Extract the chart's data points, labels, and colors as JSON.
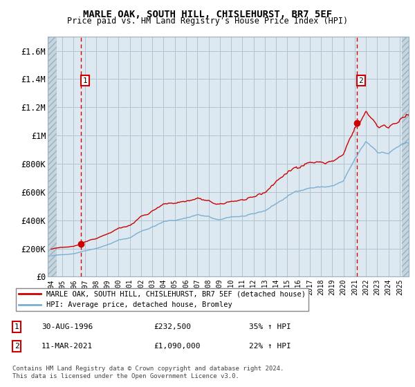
{
  "title": "MARLE OAK, SOUTH HILL, CHISLEHURST, BR7 5EF",
  "subtitle": "Price paid vs. HM Land Registry's House Price Index (HPI)",
  "ylabel_ticks": [
    "£0",
    "£200K",
    "£400K",
    "£600K",
    "£800K",
    "£1M",
    "£1.2M",
    "£1.4M",
    "£1.6M"
  ],
  "ytick_values": [
    0,
    200000,
    400000,
    600000,
    800000,
    1000000,
    1200000,
    1400000,
    1600000
  ],
  "ylim": [
    0,
    1700000
  ],
  "xlim_start": 1993.7,
  "xlim_end": 2025.8,
  "marker1_x": 1996.66,
  "marker1_y": 232500,
  "marker2_x": 2021.19,
  "marker2_y": 1090000,
  "vline1_x": 1996.66,
  "vline2_x": 2021.19,
  "legend_line1": "MARLE OAK, SOUTH HILL, CHISLEHURST, BR7 5EF (detached house)",
  "legend_line2": "HPI: Average price, detached house, Bromley",
  "annotation1_label": "1",
  "annotation2_label": "2",
  "annotation1_date": "30-AUG-1996",
  "annotation1_price": "£232,500",
  "annotation1_hpi": "35% ↑ HPI",
  "annotation2_date": "11-MAR-2021",
  "annotation2_price": "£1,090,000",
  "annotation2_hpi": "22% ↑ HPI",
  "footer1": "Contains HM Land Registry data © Crown copyright and database right 2024.",
  "footer2": "This data is licensed under the Open Government Licence v3.0.",
  "red_line_color": "#cc0000",
  "blue_line_color": "#7aafd4",
  "bg_color": "#dde8f0",
  "hatch_color": "#c5d5e0",
  "grid_color": "#b0c4d0",
  "vline_color": "#dd0000",
  "box_color": "#cc0000",
  "hatch_left_end": 1994.5,
  "hatch_right_start": 2025.17
}
